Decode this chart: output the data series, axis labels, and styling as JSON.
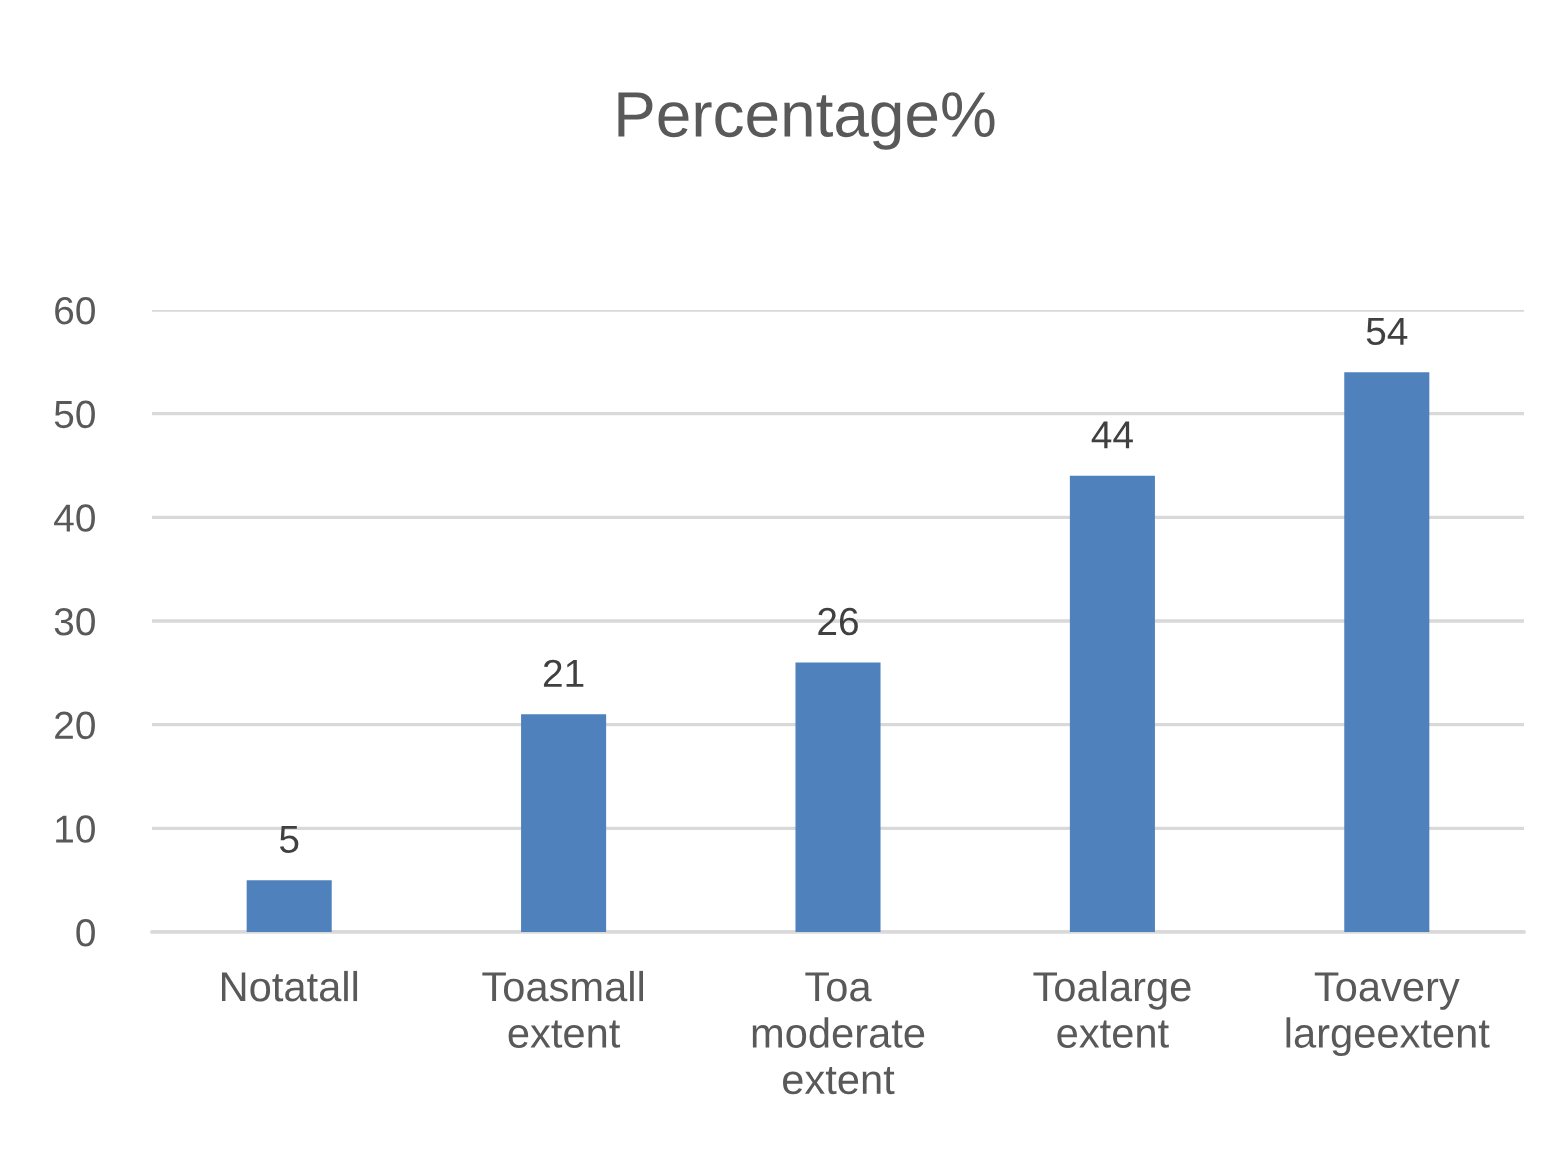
{
  "chart_data": {
    "type": "bar",
    "title": "Percentage%",
    "categories": [
      "Notatall",
      "Toasmall extent",
      "Toa moderate extent",
      "Toalarge extent",
      "Toavery largeextent"
    ],
    "values": [
      5,
      21,
      26,
      44,
      54
    ],
    "color": "#4f81bd",
    "ylim": [
      0,
      60
    ],
    "yticks": [
      0,
      10,
      20,
      30,
      40,
      50,
      60
    ],
    "grid": "y",
    "data_labels": true,
    "legend": false
  }
}
